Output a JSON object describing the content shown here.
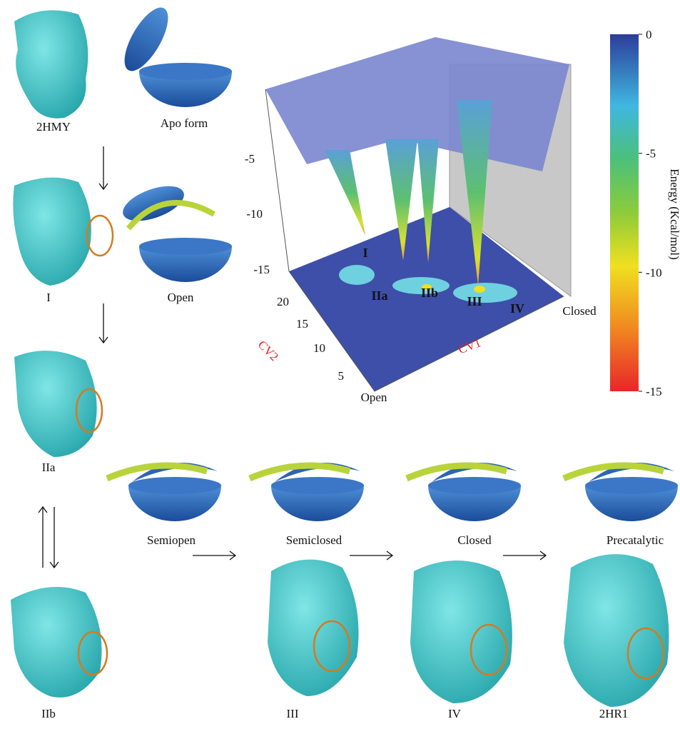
{
  "structures": {
    "top": [
      "2HMY",
      "Apo form"
    ],
    "first": [
      "I",
      "Open"
    ],
    "second": "IIa",
    "bottom": [
      "IIb",
      "III",
      "IV",
      "2HR1"
    ]
  },
  "states": [
    "Semiopen",
    "Semiclosed",
    "Closed",
    "Precatalytic"
  ],
  "landscape": {
    "zticks": [
      -5,
      -10,
      -15
    ],
    "cv2_ticks": [
      20,
      15,
      10,
      5
    ],
    "cv2_label": "CV2",
    "cv1_label": "CV1",
    "open_label": "Open",
    "closed_label": "Closed",
    "basins": [
      "I",
      "IIa",
      "IIb",
      "III",
      "IV"
    ]
  },
  "colorbar": {
    "label": "Energy (Kcal/mol)",
    "range": [
      0,
      -15
    ],
    "ticks": [
      0,
      -5,
      -10,
      -15
    ]
  }
}
